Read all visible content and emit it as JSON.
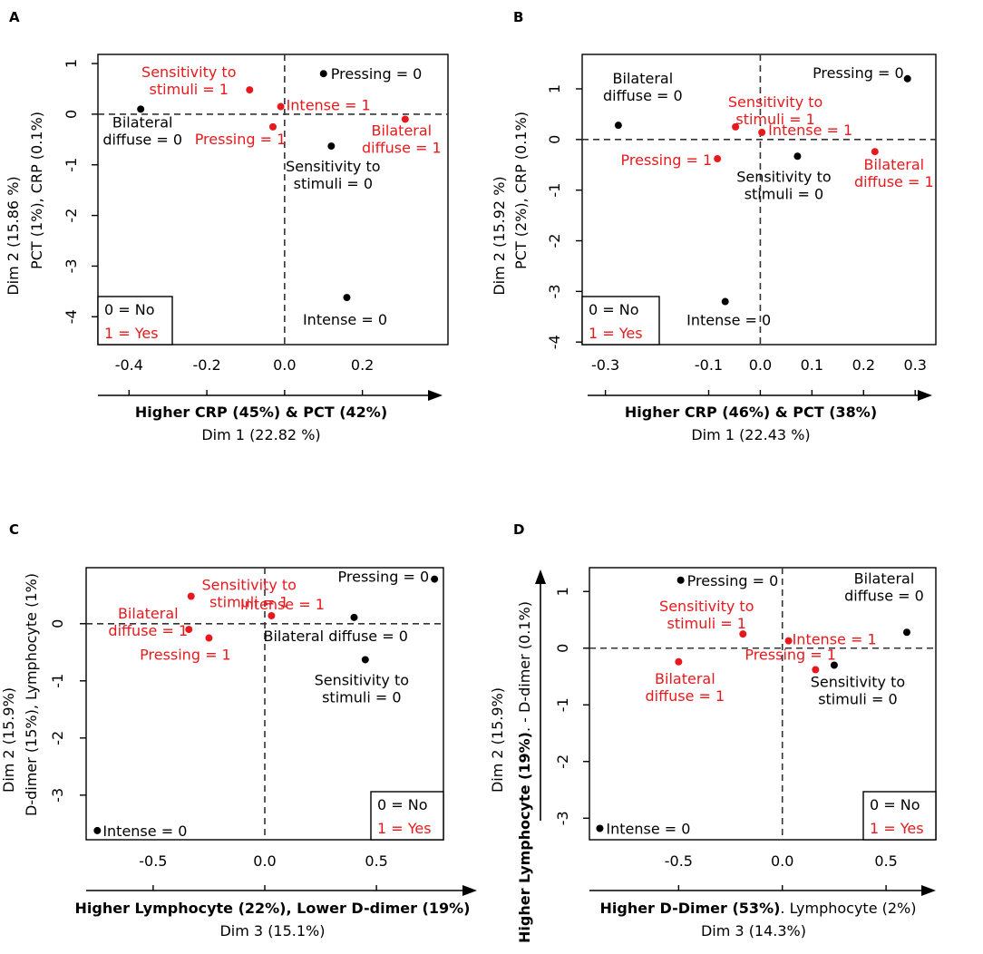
{
  "figure": {
    "colors": {
      "no": "#000000",
      "yes": "#e8191d"
    }
  },
  "chart_data": [
    {
      "panel": "A",
      "type": "scatter",
      "xlabel_bold": "Higher CRP (45%) & PCT (42%)",
      "xlabel": "Dim 1 (22.82 %)",
      "ylabel": "Dim 2 (15.86 %)",
      "ylabel_sub": "PCT (1%), CRP (0.1%)",
      "xlim": [
        -0.48,
        0.42
      ],
      "ylim": [
        -4.55,
        1.18
      ],
      "xticks": [
        {
          "v": -0.4,
          "label": "-0.4"
        },
        {
          "v": -0.2,
          "label": "-0.2"
        },
        {
          "v": 0.0,
          "label": "0.0"
        },
        {
          "v": 0.2,
          "label": "0.2"
        }
      ],
      "yticks": [
        {
          "v": -4,
          "label": "-4"
        },
        {
          "v": -3,
          "label": "-3"
        },
        {
          "v": -2,
          "label": "-2"
        },
        {
          "v": -1,
          "label": "-1"
        },
        {
          "v": 0,
          "label": "0"
        },
        {
          "v": 1,
          "label": "1"
        }
      ],
      "legend": {
        "no": "0 = No",
        "yes": "1 = Yes"
      },
      "points": [
        {
          "x": 0.1,
          "y": 0.8,
          "c": "no",
          "label": [
            "Pressing = 0"
          ]
        },
        {
          "x": -0.37,
          "y": 0.1,
          "c": "no",
          "label": [
            "Bilateral",
            "diffuse = 0"
          ]
        },
        {
          "x": 0.12,
          "y": -0.63,
          "c": "no",
          "label": [
            "Sensitivity to",
            "stimuli = 0"
          ]
        },
        {
          "x": 0.16,
          "y": -3.62,
          "c": "no",
          "label": [
            "Intense = 0"
          ]
        },
        {
          "x": -0.09,
          "y": 0.48,
          "c": "yes",
          "label": [
            "Sensitivity to",
            "stimuli = 1"
          ]
        },
        {
          "x": -0.01,
          "y": 0.15,
          "c": "yes",
          "label": [
            "Intense = 1"
          ]
        },
        {
          "x": -0.03,
          "y": -0.25,
          "c": "yes",
          "label": [
            "Pressing = 1"
          ]
        },
        {
          "x": 0.31,
          "y": -0.1,
          "c": "yes",
          "label": [
            "Bilateral",
            "diffuse = 1"
          ]
        }
      ]
    },
    {
      "panel": "B",
      "type": "scatter",
      "xlabel_bold": "Higher CRP (46%) & PCT (38%)",
      "xlabel": "Dim 1 (22.43 %)",
      "ylabel": "Dim 2 (15.92 %)",
      "ylabel_sub": "PCT (2%), CRP (0.1%)",
      "xlim": [
        -0.345,
        0.34
      ],
      "ylim": [
        -4.05,
        1.68
      ],
      "xticks": [
        {
          "v": -0.3,
          "label": "-0.3"
        },
        {
          "v": -0.1,
          "label": "-0.1"
        },
        {
          "v": 0.0,
          "label": "0.0"
        },
        {
          "v": 0.1,
          "label": "0.1"
        },
        {
          "v": 0.2,
          "label": "0.2"
        },
        {
          "v": 0.3,
          "label": "0.3"
        }
      ],
      "yticks": [
        {
          "v": -4,
          "label": "-4"
        },
        {
          "v": -3,
          "label": "-3"
        },
        {
          "v": -2,
          "label": "-2"
        },
        {
          "v": -1,
          "label": "-1"
        },
        {
          "v": 0,
          "label": "0"
        },
        {
          "v": 1,
          "label": "1"
        }
      ],
      "legend": {
        "no": "0 = No",
        "yes": "1 = Yes"
      },
      "points": [
        {
          "x": 0.285,
          "y": 1.2,
          "c": "no",
          "label": [
            "Pressing = 0"
          ]
        },
        {
          "x": -0.275,
          "y": 0.28,
          "c": "no",
          "label": [
            "Bilateral",
            "diffuse = 0"
          ]
        },
        {
          "x": 0.072,
          "y": -0.33,
          "c": "no",
          "label": [
            "Sensitivity to",
            "stimuli = 0"
          ]
        },
        {
          "x": -0.068,
          "y": -3.2,
          "c": "no",
          "label": [
            "Intense = 0"
          ]
        },
        {
          "x": -0.048,
          "y": 0.25,
          "c": "yes",
          "label": [
            "Sensitivity to",
            "stimuli = 1"
          ]
        },
        {
          "x": 0.003,
          "y": 0.14,
          "c": "yes",
          "label": [
            "Intense = 1"
          ]
        },
        {
          "x": -0.083,
          "y": -0.38,
          "c": "yes",
          "label": [
            "Pressing = 1"
          ]
        },
        {
          "x": 0.222,
          "y": -0.24,
          "c": "yes",
          "label": [
            "Bilateral",
            "diffuse = 1"
          ]
        }
      ]
    },
    {
      "panel": "C",
      "type": "scatter",
      "xlabel_bold": "Higher Lymphocyte (22%), Lower D-dimer (19%)",
      "xlabel": "Dim 3 (15.1%)",
      "ylabel": "Dim 2 (15.9%)",
      "ylabel_sub": "D-dimer (15%), Lymphocyte (1%)",
      "xlim": [
        -0.8,
        0.8
      ],
      "ylim": [
        -3.78,
        0.98
      ],
      "xticks": [
        {
          "v": -0.5,
          "label": "-0.5"
        },
        {
          "v": 0.0,
          "label": "0.0"
        },
        {
          "v": 0.5,
          "label": "0.5"
        }
      ],
      "yticks": [
        {
          "v": -3,
          "label": "-3"
        },
        {
          "v": -2,
          "label": "-2"
        },
        {
          "v": -1,
          "label": "-1"
        },
        {
          "v": 0,
          "label": "0"
        }
      ],
      "legend": {
        "no": "0 = No",
        "yes": "1 = Yes"
      },
      "points": [
        {
          "x": 0.76,
          "y": 0.78,
          "c": "no",
          "label": [
            "Pressing = 0"
          ]
        },
        {
          "x": 0.4,
          "y": 0.11,
          "c": "no",
          "label": [
            "Bilateral diffuse = 0"
          ]
        },
        {
          "x": 0.45,
          "y": -0.63,
          "c": "no",
          "label": [
            "Sensitivity to",
            "stimuli = 0"
          ]
        },
        {
          "x": -0.75,
          "y": -3.62,
          "c": "no",
          "label": [
            "Intense = 0"
          ]
        },
        {
          "x": -0.33,
          "y": 0.48,
          "c": "yes",
          "label": [
            "Sensitivity to",
            "stimuli = 1"
          ]
        },
        {
          "x": 0.03,
          "y": 0.14,
          "c": "yes",
          "label": [
            "Intense = 1"
          ]
        },
        {
          "x": -0.34,
          "y": -0.1,
          "c": "yes",
          "label": [
            "Bilateral",
            "diffuse = 1"
          ]
        },
        {
          "x": -0.25,
          "y": -0.25,
          "c": "yes",
          "label": [
            "Pressing = 1"
          ]
        }
      ]
    },
    {
      "panel": "D",
      "type": "scatter",
      "xlabel_bold": "Higher D-Dimer (53%)",
      "xlabel_rest": ". Lymphocyte (2%)",
      "xlabel": "Dim 3 (14.3%)",
      "ylabel": "Dim 2 (15.9%)",
      "ylabel_bold": "Higher Lymphocyte (19%)",
      "ylabel_rest": ". - D-dimer (0.1%)",
      "xlim": [
        -0.93,
        0.74
      ],
      "ylim": [
        -3.38,
        1.42
      ],
      "xticks": [
        {
          "v": -0.5,
          "label": "-0.5"
        },
        {
          "v": 0.0,
          "label": "0.0"
        },
        {
          "v": 0.5,
          "label": "0.5"
        }
      ],
      "yticks": [
        {
          "v": -3,
          "label": "-3"
        },
        {
          "v": -2,
          "label": "-2"
        },
        {
          "v": -1,
          "label": "-1"
        },
        {
          "v": 0,
          "label": "0"
        },
        {
          "v": 1,
          "label": "1"
        }
      ],
      "legend": {
        "no": "0 = No",
        "yes": "1 = Yes"
      },
      "points": [
        {
          "x": -0.49,
          "y": 1.2,
          "c": "no",
          "label": [
            "Pressing = 0"
          ]
        },
        {
          "x": 0.6,
          "y": 0.28,
          "c": "no",
          "label": [
            "Bilateral",
            "diffuse = 0"
          ]
        },
        {
          "x": 0.25,
          "y": -0.3,
          "c": "no",
          "label": [
            "Sensitivity to",
            "stimuli = 0"
          ]
        },
        {
          "x": -0.88,
          "y": -3.18,
          "c": "no",
          "label": [
            "Intense = 0"
          ]
        },
        {
          "x": -0.19,
          "y": 0.25,
          "c": "yes",
          "label": [
            "Sensitivity to",
            "stimuli = 1"
          ]
        },
        {
          "x": 0.03,
          "y": 0.13,
          "c": "yes",
          "label": [
            "Intense = 1"
          ]
        },
        {
          "x": 0.16,
          "y": -0.38,
          "c": "yes",
          "label": [
            "Pressing = 1"
          ]
        },
        {
          "x": -0.5,
          "y": -0.24,
          "c": "yes",
          "label": [
            "Bilateral",
            "diffuse = 1"
          ]
        }
      ]
    }
  ]
}
